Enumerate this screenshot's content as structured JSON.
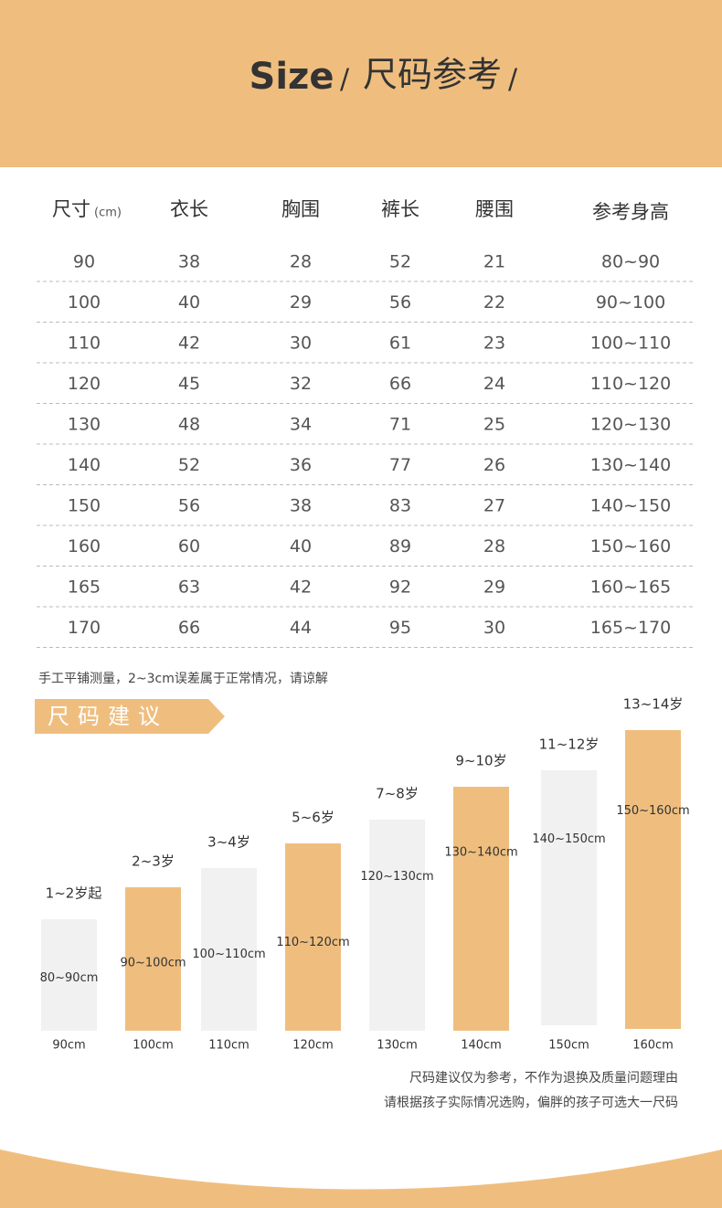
{
  "header": {
    "title": "Size",
    "slash_left": "/",
    "subtitle": "尺码参考",
    "slash_right": "/"
  },
  "table": {
    "columns": [
      "尺寸",
      "衣长",
      "胸围",
      "裤长",
      "腰围",
      "参考身高"
    ],
    "unit": "(cm)",
    "rows": [
      [
        90,
        38,
        28,
        52,
        21,
        "80~90"
      ],
      [
        100,
        40,
        29,
        56,
        22,
        "90~100"
      ],
      [
        110,
        42,
        30,
        61,
        23,
        "100~110"
      ],
      [
        120,
        45,
        32,
        66,
        24,
        "110~120"
      ],
      [
        130,
        48,
        34,
        71,
        25,
        "120~130"
      ],
      [
        140,
        52,
        36,
        77,
        26,
        "130~140"
      ],
      [
        150,
        56,
        38,
        83,
        27,
        "140~150"
      ],
      [
        160,
        60,
        40,
        89,
        28,
        "150~160"
      ],
      [
        165,
        63,
        42,
        92,
        29,
        "160~165"
      ],
      [
        170,
        66,
        44,
        95,
        30,
        "165~170"
      ]
    ]
  },
  "note": "手工平铺测量，2~3cm误差属于正常情况，请谅解",
  "banner": "尺码建议",
  "sizes": [
    {
      "age": "1~2岁起",
      "range": "80~90cm",
      "size": "90cm"
    },
    {
      "age": "2~3岁",
      "range": "90~100cm",
      "size": "100cm"
    },
    {
      "age": "3~4岁",
      "range": "100~110cm",
      "size": "110cm"
    },
    {
      "age": "5~6岁",
      "range": "110~120cm",
      "size": "120cm"
    },
    {
      "age": "7~8岁",
      "range": "120~130cm",
      "size": "130cm"
    },
    {
      "age": "9~10岁",
      "range": "130~140cm",
      "size": "140cm"
    },
    {
      "age": "11~12岁",
      "range": "140~150cm",
      "size": "150cm"
    },
    {
      "age": "13~14岁",
      "range": "150~160cm",
      "size": "160cm"
    }
  ],
  "footer": [
    "尺码建议仅为参考，不作为退换及质量问题理由",
    "请根据孩子实际情况选购，偏胖的孩子可选大一尺码"
  ]
}
